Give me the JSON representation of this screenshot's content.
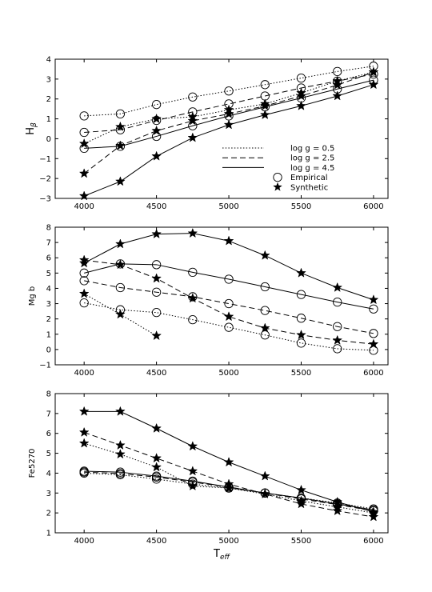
{
  "chart_data": [
    {
      "type": "line",
      "ylabel_main": "H",
      "ylabel_sub": "β",
      "xlabel_main": "",
      "xlabel_sub": "",
      "xlim": [
        3800,
        6100
      ],
      "ylim": [
        -3,
        4
      ],
      "xticks": [
        4000,
        4500,
        5000,
        5500,
        6000
      ],
      "yticks": [
        -3,
        -2,
        -1,
        0,
        1,
        2,
        3,
        4
      ],
      "legend": {
        "placement": "lower-right",
        "entries": [
          "log g = 0.5",
          "log g = 2.5",
          "log g = 4.5",
          "Empirical",
          "Synthetic"
        ]
      },
      "series": [
        {
          "style": "dotted",
          "marker": "circle",
          "x": [
            4000,
            4250,
            4500,
            4750,
            5000,
            5250,
            5500,
            5750,
            6000
          ],
          "y": [
            1.15,
            1.25,
            1.72,
            2.1,
            2.4,
            2.72,
            3.05,
            3.38,
            3.65
          ]
        },
        {
          "style": "dotted",
          "marker": "star",
          "x": [
            4000,
            4250,
            4500,
            4750,
            5000,
            5250,
            5500,
            5750,
            6000
          ],
          "y": [
            -0.25,
            0.6,
            1.0,
            1.1,
            1.45,
            1.75,
            2.3,
            2.9,
            3.35
          ]
        },
        {
          "style": "dashed",
          "marker": "circle",
          "x": [
            4000,
            4250,
            4500,
            4750,
            5000,
            5250,
            5500,
            5750,
            6000
          ],
          "y": [
            0.32,
            0.45,
            0.92,
            1.35,
            1.75,
            2.15,
            2.55,
            2.9,
            3.25
          ]
        },
        {
          "style": "dashed",
          "marker": "star",
          "x": [
            4000,
            4250,
            4500,
            4750,
            5000,
            5250,
            5500,
            5750,
            6000
          ],
          "y": [
            -1.75,
            -0.35,
            0.4,
            0.9,
            1.25,
            1.65,
            2.15,
            2.7,
            3.35
          ]
        },
        {
          "style": "solid",
          "marker": "circle",
          "x": [
            4000,
            4250,
            4500,
            4750,
            5000,
            5250,
            5500,
            5750,
            6000
          ],
          "y": [
            -0.48,
            -0.38,
            0.12,
            0.65,
            1.15,
            1.6,
            2.05,
            2.5,
            2.95
          ]
        },
        {
          "style": "solid",
          "marker": "star",
          "x": [
            4000,
            4250,
            4500,
            4750,
            5000,
            5250,
            5500,
            5750,
            6000
          ],
          "y": [
            -2.88,
            -2.15,
            -0.88,
            0.05,
            0.7,
            1.2,
            1.65,
            2.15,
            2.72
          ]
        }
      ]
    },
    {
      "type": "line",
      "ylabel_main": "Mg b",
      "ylabel_sub": "",
      "xlabel_main": "",
      "xlabel_sub": "",
      "xlim": [
        3800,
        6100
      ],
      "ylim": [
        -1,
        8
      ],
      "xticks": [
        4000,
        4500,
        5000,
        5500,
        6000
      ],
      "yticks": [
        -1,
        0,
        1,
        2,
        3,
        4,
        5,
        6,
        7,
        8
      ],
      "series": [
        {
          "style": "dotted",
          "marker": "circle",
          "x": [
            4000,
            4250,
            4500,
            4750,
            5000,
            5250,
            5500,
            5750,
            6000
          ],
          "y": [
            3.05,
            2.6,
            2.42,
            1.95,
            1.45,
            0.95,
            0.42,
            0.05,
            -0.05
          ]
        },
        {
          "style": "dotted",
          "marker": "star",
          "x": [
            4000,
            4250,
            4500
          ],
          "y": [
            3.65,
            2.3,
            0.9
          ]
        },
        {
          "style": "dashed",
          "marker": "circle",
          "x": [
            4000,
            4250,
            4500,
            4750,
            5000,
            5250,
            5500,
            5750,
            6000
          ],
          "y": [
            4.5,
            4.05,
            3.75,
            3.45,
            3.0,
            2.55,
            2.05,
            1.5,
            1.05
          ]
        },
        {
          "style": "dashed",
          "marker": "star",
          "x": [
            4000,
            4250,
            4500,
            4750,
            5000,
            5250,
            5500,
            5750,
            6000
          ],
          "y": [
            5.85,
            5.55,
            4.65,
            3.35,
            2.15,
            1.4,
            0.95,
            0.6,
            0.35
          ]
        },
        {
          "style": "solid",
          "marker": "circle",
          "x": [
            4000,
            4250,
            4500,
            4750,
            5000,
            5250,
            5500,
            5750,
            6000
          ],
          "y": [
            5.0,
            5.6,
            5.55,
            5.05,
            4.6,
            4.1,
            3.6,
            3.1,
            2.65
          ]
        },
        {
          "style": "solid",
          "marker": "star",
          "x": [
            4000,
            4250,
            4500,
            4750,
            5000,
            5250,
            5500,
            5750,
            6000
          ],
          "y": [
            5.65,
            6.9,
            7.55,
            7.6,
            7.1,
            6.15,
            5.0,
            4.05,
            3.25
          ]
        }
      ]
    },
    {
      "type": "line",
      "ylabel_main": "Fe5270",
      "ylabel_sub": "",
      "xlabel_main": "T",
      "xlabel_sub": "eff",
      "xlim": [
        3800,
        6100
      ],
      "ylim": [
        1,
        8
      ],
      "xticks": [
        4000,
        4500,
        5000,
        5500,
        6000
      ],
      "yticks": [
        1,
        2,
        3,
        4,
        5,
        6,
        7,
        8
      ],
      "series": [
        {
          "style": "dotted",
          "marker": "circle",
          "x": [
            4000,
            4250,
            4500,
            4750,
            5000,
            5250,
            5500,
            5750,
            6000
          ],
          "y": [
            4.0,
            3.92,
            3.7,
            3.45,
            3.25,
            3.0,
            2.75,
            2.5,
            2.2
          ]
        },
        {
          "style": "dotted",
          "marker": "star",
          "x": [
            4000,
            4250,
            4500,
            4750,
            5000,
            5250,
            5500,
            5750,
            6000
          ],
          "y": [
            5.5,
            4.95,
            4.3,
            3.35,
            3.25,
            2.95,
            2.6,
            2.3,
            2.0
          ]
        },
        {
          "style": "dashed",
          "marker": "circle",
          "x": [
            4000,
            4250,
            4500,
            4750,
            5000,
            5250,
            5500,
            5750,
            6000
          ],
          "y": [
            4.05,
            3.98,
            3.8,
            3.55,
            3.3,
            3.0,
            2.7,
            2.42,
            2.1
          ]
        },
        {
          "style": "dashed",
          "marker": "star",
          "x": [
            4000,
            4250,
            4500,
            4750,
            5000,
            5250,
            5500,
            5750,
            6000
          ],
          "y": [
            6.05,
            5.4,
            4.75,
            4.1,
            3.45,
            2.95,
            2.45,
            2.1,
            1.8
          ]
        },
        {
          "style": "solid",
          "marker": "circle",
          "x": [
            4000,
            4250,
            4500,
            4750,
            5000,
            5250,
            5500,
            5750,
            6000
          ],
          "y": [
            4.1,
            4.05,
            3.85,
            3.6,
            3.3,
            3.0,
            2.75,
            2.45,
            2.15
          ]
        },
        {
          "style": "solid",
          "marker": "star",
          "x": [
            4000,
            4250,
            4500,
            4750,
            5000,
            5250,
            5500,
            5750,
            6000
          ],
          "y": [
            7.1,
            7.1,
            6.25,
            5.35,
            4.55,
            3.85,
            3.15,
            2.55,
            2.05
          ]
        }
      ]
    }
  ]
}
